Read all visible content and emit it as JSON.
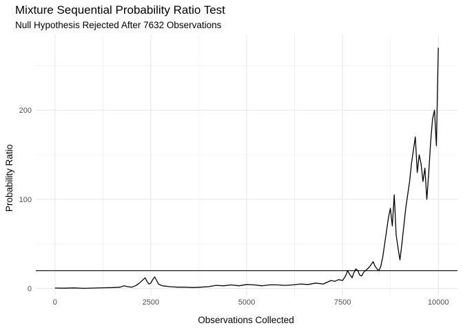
{
  "chart_data": {
    "type": "line",
    "title": "Mixture Sequential Probability Ratio Test",
    "subtitle": "Null Hypothesis Rejected After 7632 Observations",
    "xlabel": "Observations Collected",
    "ylabel": "Probability Ratio",
    "xlim": [
      -500,
      10500
    ],
    "ylim": [
      -8,
      285
    ],
    "x_ticks": [
      0,
      2500,
      5000,
      7500,
      10000
    ],
    "x_tick_labels": [
      "0",
      "2500",
      "5000",
      "7500",
      "10000"
    ],
    "y_ticks": [
      0,
      100,
      200
    ],
    "y_tick_labels": [
      "0",
      "100",
      "200"
    ],
    "grid": true,
    "threshold": 20,
    "line_color": "#000000",
    "series": [
      {
        "x": [
          0,
          250,
          500,
          750,
          1000,
          1250,
          1500,
          1700,
          1800,
          1900,
          2000,
          2100,
          2200,
          2300,
          2350,
          2400,
          2450,
          2500,
          2550,
          2600,
          2650,
          2700,
          2800,
          3000,
          3200,
          3400,
          3600,
          3800,
          4000,
          4200,
          4400,
          4600,
          4800,
          5000,
          5200,
          5400,
          5600,
          5800,
          6000,
          6200,
          6400,
          6600,
          6800,
          7000,
          7100,
          7200,
          7300,
          7400,
          7500,
          7550,
          7600,
          7632,
          7700,
          7750,
          7800,
          7850,
          7900,
          7950,
          8000,
          8050,
          8100,
          8150,
          8200,
          8250,
          8300,
          8350,
          8400,
          8450,
          8500,
          8550,
          8600,
          8650,
          8700,
          8750,
          8800,
          8850,
          8900,
          8950,
          9000,
          9050,
          9100,
          9150,
          9200,
          9250,
          9300,
          9350,
          9400,
          9450,
          9500,
          9550,
          9600,
          9650,
          9700,
          9750,
          9800,
          9850,
          9900,
          9950,
          9980,
          10000
        ],
        "y": [
          0.5,
          0.3,
          0.6,
          0.2,
          0.5,
          0.8,
          1.0,
          1.5,
          3.0,
          2.0,
          1.5,
          3.0,
          6.0,
          10.0,
          12.0,
          8.0,
          5.0,
          6.0,
          10.0,
          13.0,
          9.0,
          5.0,
          3.0,
          2.0,
          1.5,
          1.5,
          1.0,
          1.5,
          2.0,
          3.5,
          3.0,
          4.0,
          3.0,
          4.5,
          4.0,
          3.0,
          4.0,
          4.0,
          3.5,
          4.0,
          5.0,
          4.5,
          6.0,
          5.0,
          7.0,
          9.0,
          8.0,
          10.0,
          9.0,
          12.0,
          16.0,
          20.0,
          15.0,
          12.0,
          18.0,
          22.0,
          20.0,
          15.0,
          14.0,
          18.0,
          20.0,
          22.0,
          24.0,
          27.0,
          30.0,
          25.0,
          22.0,
          20.0,
          25.0,
          35.0,
          50.0,
          65.0,
          80.0,
          90.0,
          70.0,
          105.0,
          60.0,
          45.0,
          32.0,
          50.0,
          70.0,
          90.0,
          105.0,
          120.0,
          140.0,
          155.0,
          170.0,
          130.0,
          150.0,
          140.0,
          120.0,
          135.0,
          100.0,
          130.0,
          165.0,
          190.0,
          200.0,
          160.0,
          230.0,
          270.0
        ]
      }
    ]
  }
}
